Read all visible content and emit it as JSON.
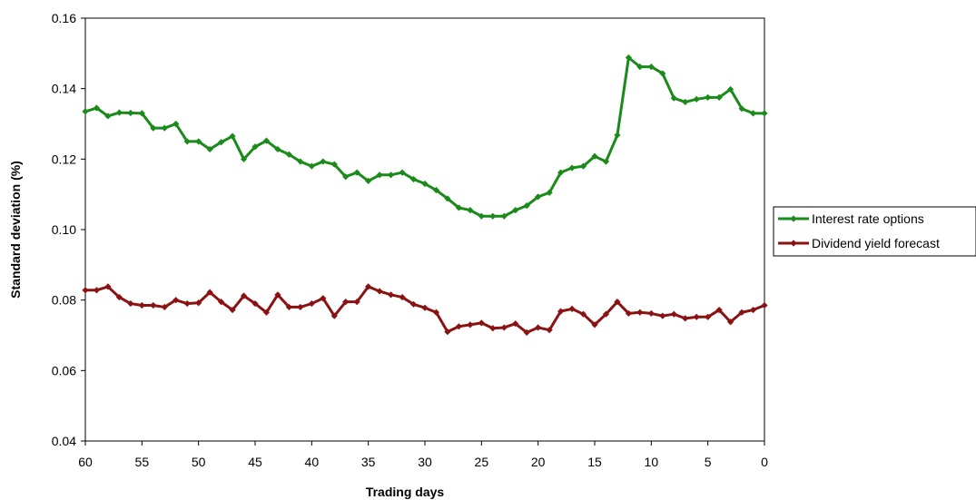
{
  "chart_data": {
    "type": "line",
    "xlabel": "Trading days",
    "ylabel": "Standard deviation (%)",
    "xlim": [
      60,
      0
    ],
    "ylim": [
      0.04,
      0.16
    ],
    "xticks": [
      "60",
      "55",
      "50",
      "45",
      "40",
      "35",
      "30",
      "25",
      "20",
      "15",
      "10",
      "5",
      "0"
    ],
    "yticks": [
      "0.04",
      "0.06",
      "0.08",
      "0.10",
      "0.12",
      "0.14",
      "0.16"
    ],
    "grid": false,
    "legend_position": "right",
    "x": [
      60,
      59,
      58,
      57,
      56,
      55,
      54,
      53,
      52,
      51,
      50,
      49,
      48,
      47,
      46,
      45,
      44,
      43,
      42,
      41,
      40,
      39,
      38,
      37,
      36,
      35,
      34,
      33,
      32,
      31,
      30,
      29,
      28,
      27,
      26,
      25,
      24,
      23,
      22,
      21,
      20,
      19,
      18,
      17,
      16,
      15,
      14,
      13,
      12,
      11,
      10,
      9,
      8,
      7,
      6,
      5,
      4,
      3,
      2,
      1,
      0
    ],
    "series": [
      {
        "name": "Interest rate options",
        "color": "#1a8a1a",
        "values": [
          0.1335,
          0.1345,
          0.1322,
          0.1332,
          0.1331,
          0.133,
          0.1288,
          0.1288,
          0.13,
          0.125,
          0.125,
          0.1228,
          0.1248,
          0.1265,
          0.12,
          0.1235,
          0.1252,
          0.1228,
          0.1213,
          0.1193,
          0.118,
          0.1193,
          0.1185,
          0.115,
          0.1162,
          0.1138,
          0.1155,
          0.1155,
          0.1162,
          0.1143,
          0.113,
          0.1112,
          0.1088,
          0.1062,
          0.1055,
          0.1038,
          0.1038,
          0.1038,
          0.1055,
          0.1068,
          0.1093,
          0.1105,
          0.1162,
          0.1175,
          0.118,
          0.1208,
          0.1193,
          0.1268,
          0.1488,
          0.1462,
          0.1462,
          0.1443,
          0.1373,
          0.1362,
          0.137,
          0.1375,
          0.1375,
          0.1398,
          0.1343,
          0.133,
          0.133
        ]
      },
      {
        "name": "Dividend yield forecast",
        "color": "#8b1212",
        "values": [
          0.0828,
          0.0828,
          0.0838,
          0.0808,
          0.079,
          0.0785,
          0.0785,
          0.078,
          0.08,
          0.079,
          0.0792,
          0.0822,
          0.0795,
          0.0772,
          0.0812,
          0.079,
          0.0765,
          0.0815,
          0.078,
          0.078,
          0.079,
          0.0805,
          0.0755,
          0.0795,
          0.0795,
          0.0838,
          0.0825,
          0.0815,
          0.0808,
          0.0788,
          0.0778,
          0.0765,
          0.071,
          0.0725,
          0.073,
          0.0735,
          0.072,
          0.0722,
          0.0733,
          0.0708,
          0.0722,
          0.0715,
          0.0768,
          0.0775,
          0.076,
          0.073,
          0.076,
          0.0795,
          0.0762,
          0.0765,
          0.0762,
          0.0755,
          0.076,
          0.0748,
          0.0752,
          0.0752,
          0.0772,
          0.0738,
          0.0765,
          0.0772,
          0.0785
        ]
      }
    ]
  }
}
